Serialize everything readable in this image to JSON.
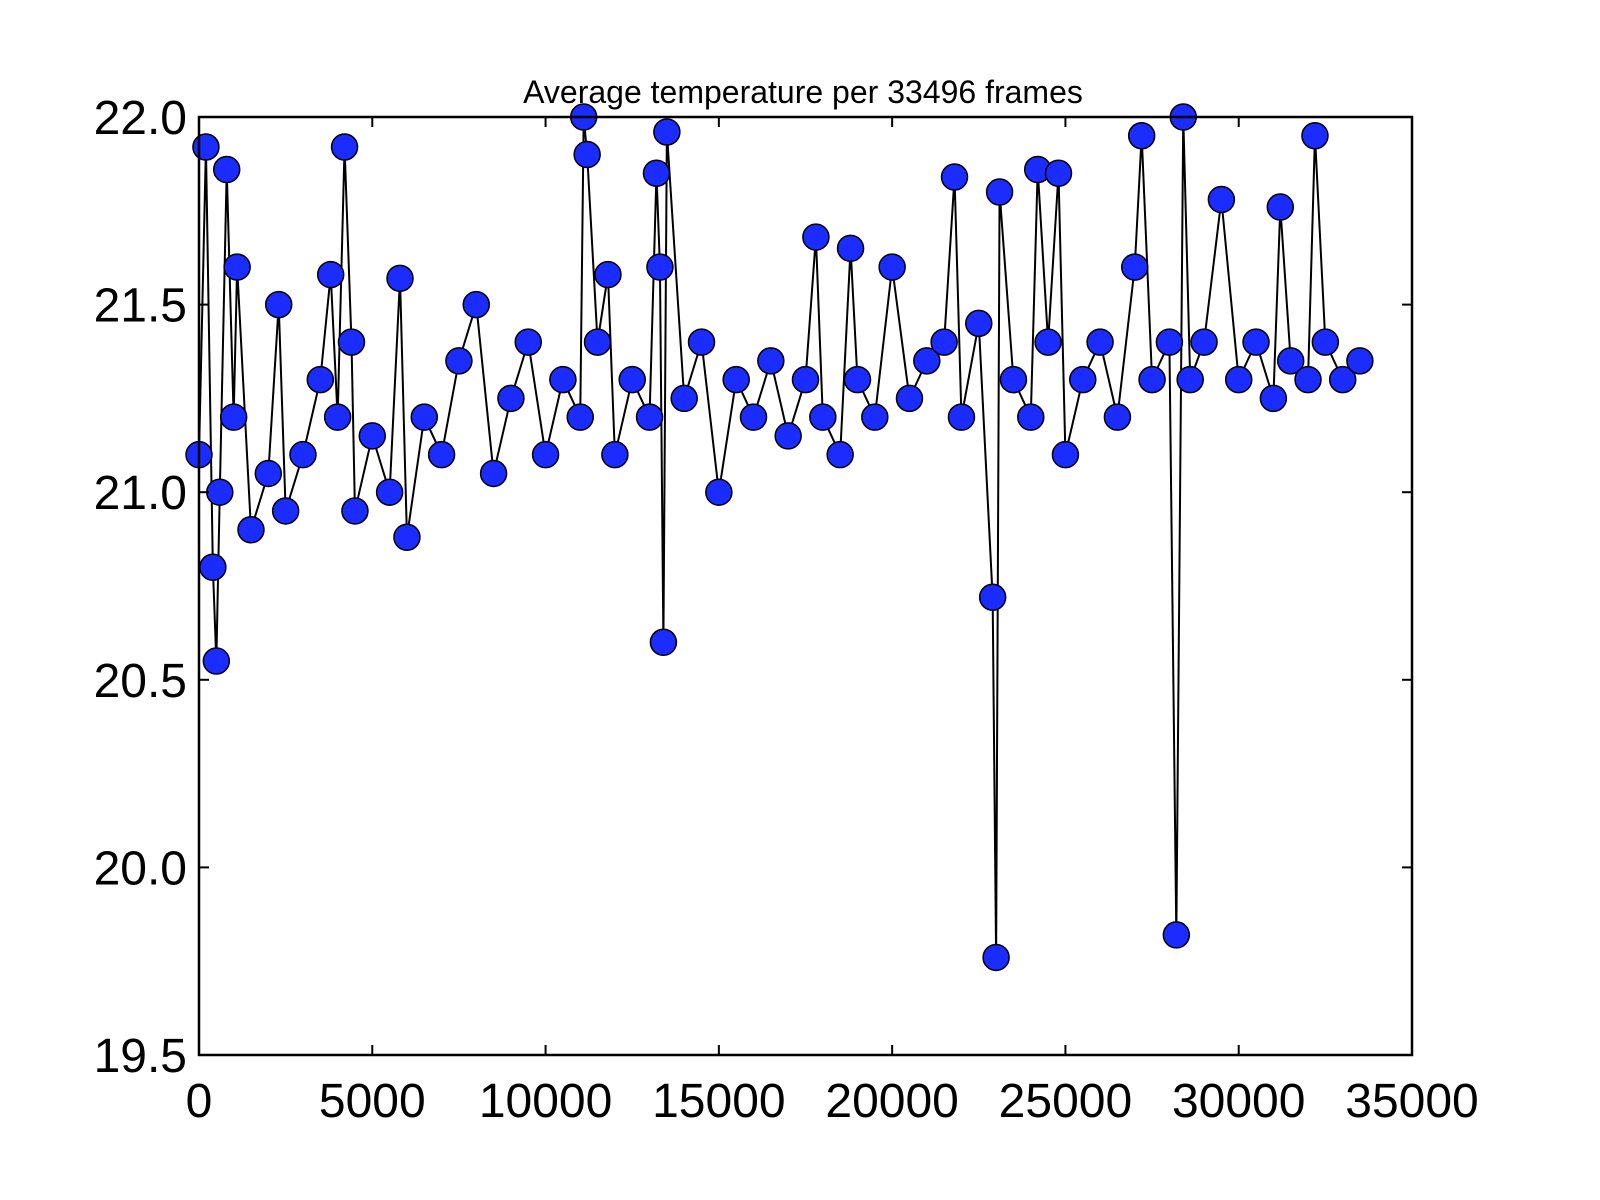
{
  "chart_data": {
    "type": "line",
    "title": "Average temperature per 33496 frames",
    "xlabel": "",
    "ylabel": "",
    "xlim": [
      0,
      35000
    ],
    "ylim": [
      19.5,
      22.0
    ],
    "x_ticks": [
      0,
      5000,
      10000,
      15000,
      20000,
      25000,
      30000,
      35000
    ],
    "x_tick_labels": [
      "0",
      "5000",
      "10000",
      "15000",
      "20000",
      "25000",
      "30000",
      "35000"
    ],
    "y_ticks": [
      19.5,
      20.0,
      20.5,
      21.0,
      21.5,
      22.0
    ],
    "y_tick_labels": [
      "19.5",
      "20.0",
      "20.5",
      "21.0",
      "21.5",
      "22.0"
    ],
    "grid": false,
    "legend": "none",
    "marker": "circle",
    "marker_color": "#1a2cff",
    "line_color": "#000000",
    "n_frames": 33496,
    "series": [
      {
        "x": [
          0,
          200,
          400,
          500,
          600,
          800,
          1000,
          1100,
          1500,
          2000,
          2300,
          2500,
          3000,
          3500,
          3800,
          4000,
          4200,
          4400,
          4500,
          5000,
          5500,
          5800,
          6000,
          6500,
          7000,
          7500,
          8000,
          8500,
          9000,
          9500,
          10000,
          10500,
          11000,
          11100,
          11200,
          11500,
          11800,
          12000,
          12500,
          13000,
          13200,
          13300,
          13400,
          13500,
          14000,
          14500,
          15000,
          15500,
          16000,
          16500,
          17000,
          17500,
          17800,
          18000,
          18500,
          18800,
          19000,
          19500,
          20000,
          20500,
          21000,
          21500,
          21800,
          22000,
          22500,
          22900,
          23000,
          23100,
          23500,
          24000,
          24200,
          24500,
          24800,
          25000,
          25500,
          26000,
          26500,
          27000,
          27200,
          27500,
          28000,
          28200,
          28400,
          28600,
          29000,
          29500,
          30000,
          30500,
          31000,
          31200,
          31500,
          32000,
          32200,
          32500,
          33000,
          33496
        ],
        "y": [
          21.1,
          21.92,
          20.8,
          20.55,
          21.0,
          21.86,
          21.2,
          21.6,
          20.9,
          21.05,
          21.5,
          20.95,
          21.1,
          21.3,
          21.58,
          21.2,
          21.92,
          21.4,
          20.95,
          21.15,
          21.0,
          21.57,
          20.88,
          21.2,
          21.1,
          21.35,
          21.5,
          21.05,
          21.25,
          21.4,
          21.1,
          21.3,
          21.2,
          22.0,
          21.9,
          21.4,
          21.58,
          21.1,
          21.3,
          21.2,
          21.85,
          21.6,
          20.6,
          21.96,
          21.25,
          21.4,
          21.0,
          21.3,
          21.2,
          21.35,
          21.15,
          21.3,
          21.68,
          21.2,
          21.1,
          21.65,
          21.3,
          21.2,
          21.6,
          21.25,
          21.35,
          21.4,
          21.84,
          21.2,
          21.45,
          20.72,
          19.76,
          21.8,
          21.3,
          21.2,
          21.86,
          21.4,
          21.85,
          21.1,
          21.3,
          21.4,
          21.2,
          21.6,
          21.95,
          21.3,
          21.4,
          19.82,
          22.0,
          21.3,
          21.4,
          21.78,
          21.3,
          21.4,
          21.25,
          21.76,
          21.35,
          21.3,
          21.95,
          21.4,
          21.3,
          21.35
        ]
      }
    ]
  }
}
